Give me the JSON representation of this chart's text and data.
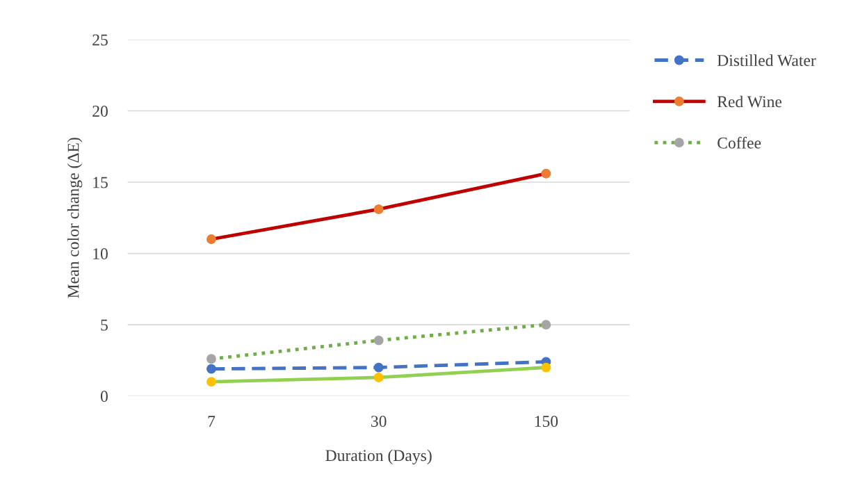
{
  "chart_data": {
    "type": "line",
    "xlabel": "Duration (Days)",
    "ylabel": "Mean color change (ΔE)",
    "categories": [
      "7",
      "30",
      "150"
    ],
    "series": [
      {
        "name": "Distilled Water",
        "color": "#4472c4",
        "colors": [
          "#4472c4",
          "#4472c4",
          "#4472c4"
        ],
        "line_style": "dashed",
        "values": [
          1.9,
          2.0,
          2.4
        ]
      },
      {
        "name": "Red Wine",
        "color": "#c00000",
        "colors": [
          "#ed7d31",
          "#ed7d31",
          "#ed7d31"
        ],
        "line_style": "solid",
        "values": [
          11.0,
          13.1,
          15.6
        ]
      },
      {
        "name": "Coffee",
        "color": "#70ad47",
        "colors": [
          "#a5a5a5",
          "#a5a5a5",
          "#a5a5a5"
        ],
        "line_style": "dotted",
        "values": [
          2.6,
          3.9,
          5.0
        ]
      },
      {
        "color": "#92d050",
        "colors": [
          "#ffc000",
          "#ffc000",
          "#ffc000"
        ],
        "line_style": "solid",
        "values": [
          1.0,
          1.3,
          2.0
        ]
      }
    ],
    "ylim": [
      0,
      25
    ],
    "yticks": [
      0,
      5,
      10,
      15,
      20,
      25
    ],
    "grid": "y",
    "legend": "right",
    "marker": "circle"
  }
}
